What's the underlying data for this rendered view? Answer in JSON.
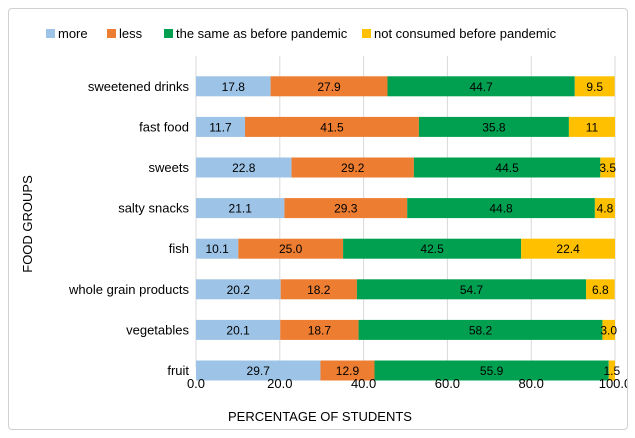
{
  "chart_data": {
    "type": "bar",
    "orientation": "horizontal",
    "stacked": true,
    "xlabel": "PERCENTAGE OF STUDENTS",
    "ylabel": "FOOD GROUPS",
    "xlim": [
      0,
      100
    ],
    "xticks": [
      "0.0",
      "20.0",
      "40.0",
      "60.0",
      "80.0",
      "100.0"
    ],
    "grid": "vertical",
    "legend_position": "top",
    "categories": [
      "sweetened drinks",
      "fast food",
      "sweets",
      "salty snacks",
      "fish",
      "whole grain products",
      "vegetables",
      "fruit"
    ],
    "series": [
      {
        "name": "more",
        "color": "#9dc3e6",
        "values": [
          17.8,
          11.7,
          22.8,
          21.1,
          10.1,
          20.2,
          20.1,
          29.7
        ],
        "labels": [
          "17.8",
          "11.7",
          "22.8",
          "21.1",
          "10.1",
          "20.2",
          "20.1",
          "29.7"
        ]
      },
      {
        "name": "less",
        "color": "#ed7d31",
        "values": [
          27.9,
          41.5,
          29.2,
          29.3,
          25.0,
          18.2,
          18.7,
          12.9
        ],
        "labels": [
          "27.9",
          "41.5",
          "29.2",
          "29.3",
          "25.0",
          "18.2",
          "18.7",
          "12.9"
        ]
      },
      {
        "name": "the same as before pandemic",
        "color": "#00a050",
        "values": [
          44.7,
          35.8,
          44.5,
          44.8,
          42.5,
          54.7,
          58.2,
          55.9
        ],
        "labels": [
          "44.7",
          "35.8",
          "44.5",
          "44.8",
          "42.5",
          "54.7",
          "58.2",
          "55.9"
        ]
      },
      {
        "name": "not consumed before pandemic",
        "color": "#ffc000",
        "values": [
          9.5,
          11,
          3.5,
          4.8,
          22.4,
          6.8,
          3.0,
          1.5
        ],
        "labels": [
          "9.5",
          "11",
          "3.5",
          "4.8",
          "22.4",
          "6.8",
          "3.0",
          "1.5"
        ]
      }
    ]
  }
}
